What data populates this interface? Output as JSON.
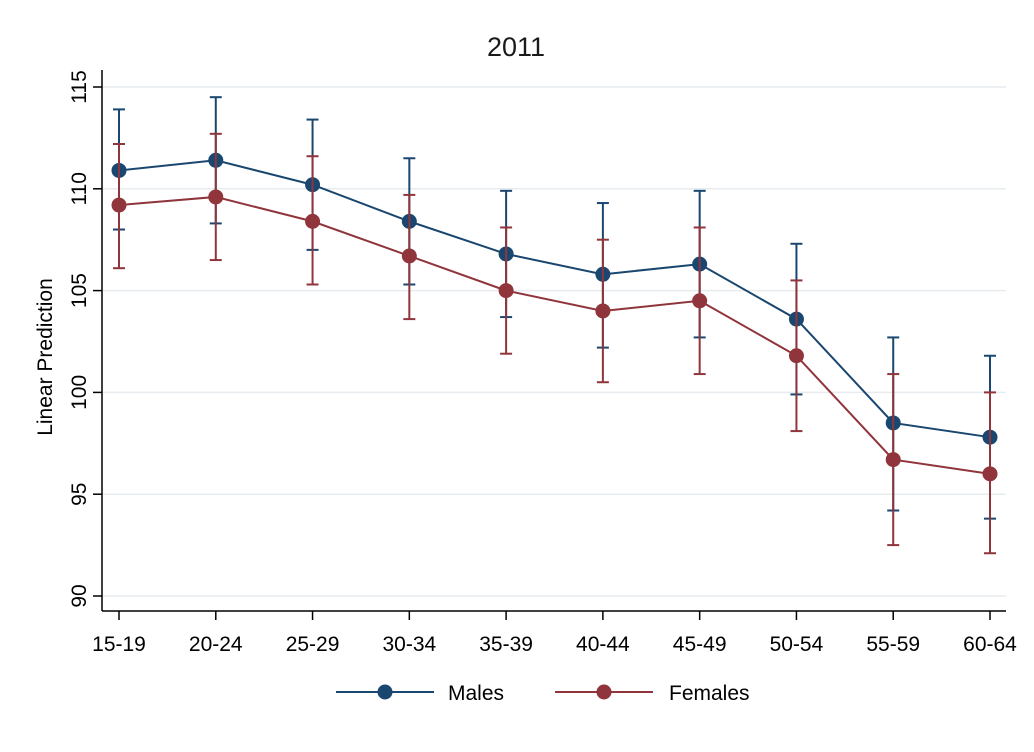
{
  "chart_data": {
    "type": "line",
    "title": "2011",
    "xlabel": "",
    "ylabel": "Linear Prediction",
    "ylim": [
      89.5,
      115.5
    ],
    "yticks": [
      90,
      95,
      100,
      105,
      110,
      115
    ],
    "grid": true,
    "legend_position": "bottom",
    "categories": [
      "15-19",
      "20-24",
      "25-29",
      "30-34",
      "35-39",
      "40-44",
      "45-49",
      "50-54",
      "55-59",
      "60-64"
    ],
    "series": [
      {
        "name": "Males",
        "color": "#1a476f",
        "values": [
          110.9,
          111.4,
          110.2,
          108.4,
          106.8,
          105.8,
          106.3,
          103.6,
          98.5,
          97.8
        ],
        "ci_low": [
          108.0,
          108.3,
          107.0,
          105.3,
          103.7,
          102.2,
          102.7,
          99.9,
          94.2,
          93.8
        ],
        "ci_high": [
          113.9,
          114.5,
          113.4,
          111.5,
          109.9,
          109.3,
          109.9,
          107.3,
          102.7,
          101.8
        ]
      },
      {
        "name": "Females",
        "color": "#90353b",
        "values": [
          109.2,
          109.6,
          108.4,
          106.7,
          105.0,
          104.0,
          104.5,
          101.8,
          96.7,
          96.0
        ],
        "ci_low": [
          106.1,
          106.5,
          105.3,
          103.6,
          101.9,
          100.5,
          100.9,
          98.1,
          92.5,
          92.1
        ],
        "ci_high": [
          112.2,
          112.7,
          111.6,
          109.7,
          108.1,
          107.5,
          108.1,
          105.5,
          100.9,
          100.0
        ]
      }
    ]
  }
}
